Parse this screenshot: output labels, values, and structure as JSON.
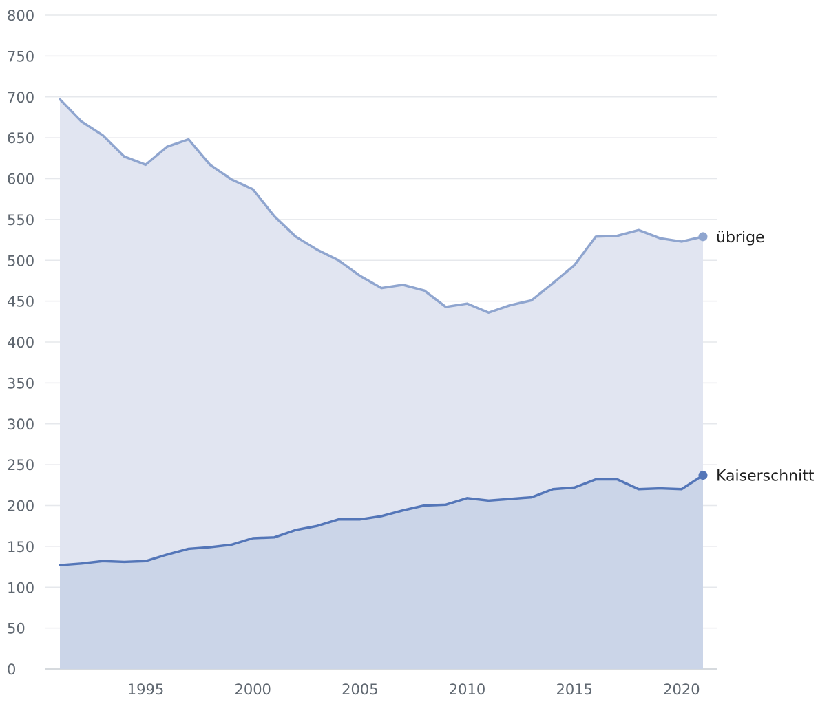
{
  "chart_data": {
    "type": "area",
    "title": "",
    "xlabel": "",
    "ylabel": "",
    "x": [
      1991,
      1992,
      1993,
      1994,
      1995,
      1996,
      1997,
      1998,
      1999,
      2000,
      2001,
      2002,
      2003,
      2004,
      2005,
      2006,
      2007,
      2008,
      2009,
      2010,
      2011,
      2012,
      2013,
      2014,
      2015,
      2016,
      2017,
      2018,
      2019,
      2020,
      2021
    ],
    "xlim": [
      1991,
      2021
    ],
    "ylim": [
      0,
      800
    ],
    "x_ticks": [
      1995,
      2000,
      2005,
      2010,
      2015,
      2020
    ],
    "y_ticks": [
      0,
      50,
      100,
      150,
      200,
      250,
      300,
      350,
      400,
      450,
      500,
      550,
      600,
      650,
      700,
      750,
      800
    ],
    "grid": true,
    "legend": "inline labels at right end of lines",
    "series": [
      {
        "name": "übrige",
        "color": "#8fa5cf",
        "fill": "#e1e5f1",
        "values": [
          697,
          670,
          653,
          627,
          617,
          639,
          648,
          617,
          599,
          587,
          554,
          529,
          513,
          500,
          481,
          466,
          470,
          463,
          443,
          447,
          436,
          445,
          451,
          472,
          494,
          529,
          530,
          537,
          527,
          523,
          529
        ]
      },
      {
        "name": "Kaiserschnitt",
        "color": "#5476b8",
        "fill": "#cbd5e8",
        "values": [
          127,
          129,
          132,
          131,
          132,
          140,
          147,
          149,
          152,
          160,
          161,
          170,
          175,
          183,
          183,
          187,
          194,
          200,
          201,
          209,
          206,
          208,
          210,
          220,
          222,
          232,
          232,
          220,
          221,
          220,
          237
        ]
      }
    ]
  }
}
